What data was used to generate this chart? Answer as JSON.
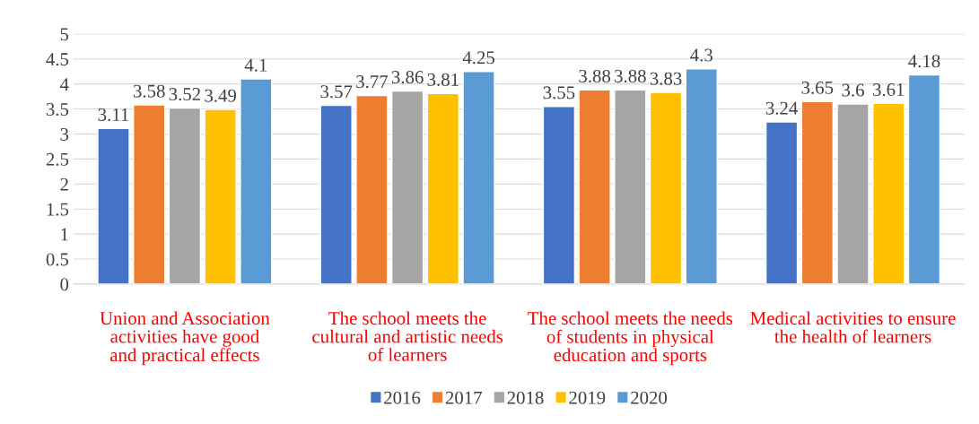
{
  "chart_data": {
    "type": "bar",
    "categories": [
      "Union and Association\nactivities have good\nand practical effects",
      "The school meets the\ncultural and artistic needs\nof learners",
      "The school meets the needs\nof students in physical\neducation and sports",
      "Medical activities to ensure\nthe health of learners"
    ],
    "series": [
      {
        "name": "2016",
        "color": "#4472c4",
        "values": [
          3.11,
          3.57,
          3.55,
          3.24
        ]
      },
      {
        "name": "2017",
        "color": "#ed7d31",
        "values": [
          3.58,
          3.77,
          3.88,
          3.65
        ]
      },
      {
        "name": "2018",
        "color": "#a5a5a5",
        "values": [
          3.52,
          3.86,
          3.88,
          3.6
        ]
      },
      {
        "name": "2019",
        "color": "#ffc000",
        "values": [
          3.49,
          3.81,
          3.83,
          3.61
        ]
      },
      {
        "name": "2020",
        "color": "#5b9bd5",
        "values": [
          4.1,
          4.25,
          4.3,
          4.18
        ]
      }
    ],
    "ylim": [
      0,
      5
    ],
    "yticks": [
      0,
      0.5,
      1,
      1.5,
      2,
      2.5,
      3,
      3.5,
      4,
      4.5,
      5
    ],
    "grid": "y",
    "legend": "bottom",
    "data_labels": true
  }
}
